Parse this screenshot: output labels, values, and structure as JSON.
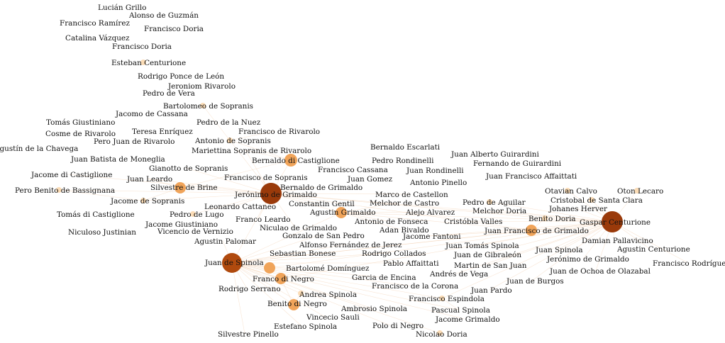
{
  "palette": {
    "hub_large": "#9a3a0a",
    "hub_medium": "#b04a0e",
    "node_mid": "#f0a45a",
    "node_light": "#f7c58e",
    "node_pale": "#fbdcb6",
    "edge": "#f3cfb0",
    "label": "#111111"
  },
  "nodes": [
    {
      "id": "lucian_grillo",
      "label": "Lucián Grillo",
      "tier": "none"
    },
    {
      "id": "alonso_guzman",
      "label": "Alonso de Guzmán",
      "tier": "none"
    },
    {
      "id": "francisco_ramirez",
      "label": "Francisco Ramírez",
      "tier": "none"
    },
    {
      "id": "francisco_doria_1",
      "label": "Francisco Doria",
      "tier": "none"
    },
    {
      "id": "catalina_vazquez",
      "label": "Catalina Vázquez",
      "tier": "none"
    },
    {
      "id": "francisco_doria_2",
      "label": "Francisco Doria",
      "tier": "none"
    },
    {
      "id": "esteban_centurione",
      "label": "Esteban Centurione",
      "tier": "pale"
    },
    {
      "id": "rodrigo_ponce",
      "label": "Rodrigo Ponce de León",
      "tier": "none"
    },
    {
      "id": "jeroniom_rivarolo",
      "label": "Jeroniom Rivarolo",
      "tier": "none"
    },
    {
      "id": "pedro_vera",
      "label": "Pedro de Vera",
      "tier": "none"
    },
    {
      "id": "bartolomeo_sopranis",
      "label": "Bartolomeo de Sopranis",
      "tier": "pale"
    },
    {
      "id": "jacomo_cassana",
      "label": "Jacomo de Cassana",
      "tier": "none"
    },
    {
      "id": "tomas_giustiniano",
      "label": "Tomás Giustiniano",
      "tier": "none"
    },
    {
      "id": "pedro_nuez",
      "label": "Pedro de la Nuez",
      "tier": "none"
    },
    {
      "id": "teresa_enriquez",
      "label": "Teresa Enríquez",
      "tier": "none"
    },
    {
      "id": "cosme_rivarolo",
      "label": "Cosme de Rivarolo",
      "tier": "none"
    },
    {
      "id": "francisco_rivarolo",
      "label": "Francisco de Rivarolo",
      "tier": "none"
    },
    {
      "id": "pero_juan_rivarolo",
      "label": "Pero Juan de Rivarolo",
      "tier": "none"
    },
    {
      "id": "antonio_sopranis",
      "label": "Antonio de Sopranis",
      "tier": "pale"
    },
    {
      "id": "agustin_chavega",
      "label": "Agustín de la Chavega",
      "tier": "none"
    },
    {
      "id": "mariettina_sopranis",
      "label": "Mariettina Sopranis de Rivarolo",
      "tier": "none"
    },
    {
      "id": "juan_batista_moneglia",
      "label": "Juan Batista de Moneglia",
      "tier": "none"
    },
    {
      "id": "bernaldo_castiglione",
      "label": "Bernaldo di Castiglione",
      "tier": "mid_large"
    },
    {
      "id": "bernaldo_escarlati",
      "label": "Bernaldo Escarlati",
      "tier": "none"
    },
    {
      "id": "juan_alberto_guirardini",
      "label": "Juan Alberto Guirardini",
      "tier": "none"
    },
    {
      "id": "pedro_rondinelli",
      "label": "Pedro Rondinelli",
      "tier": "none"
    },
    {
      "id": "fernando_guirardini",
      "label": "Fernando de Guirardini",
      "tier": "none"
    },
    {
      "id": "gianotto_sopranis",
      "label": "Gianotto de Sopranis",
      "tier": "none"
    },
    {
      "id": "francisco_cassana",
      "label": "Francisco Cassana",
      "tier": "none"
    },
    {
      "id": "juan_rondinelli",
      "label": "Juan Rondinelli",
      "tier": "none"
    },
    {
      "id": "jacome_castiglione",
      "label": "Jacome di Castiglione",
      "tier": "none"
    },
    {
      "id": "juan_leardo",
      "label": "Juan Leardo",
      "tier": "none"
    },
    {
      "id": "francisco_sopranis",
      "label": "Francisco de Sopranis",
      "tier": "none"
    },
    {
      "id": "juan_gomez",
      "label": "Juan Gomez",
      "tier": "none"
    },
    {
      "id": "juan_francisco_affaittati",
      "label": "Juan Francisco Affaittati",
      "tier": "none"
    },
    {
      "id": "antonio_pinello",
      "label": "Antonio Pinello",
      "tier": "none"
    },
    {
      "id": "silvestre_brine",
      "label": "Silvestre de Brine",
      "tier": "mid"
    },
    {
      "id": "bernaldo_grimaldo",
      "label": "Bernaldo de Grimaldo",
      "tier": "none"
    },
    {
      "id": "pero_benito_bassignana",
      "label": "Pero Benito de Bassignana",
      "tier": "pale"
    },
    {
      "id": "jeronimo_grimaldo_1",
      "label": "Jerónimo de Grimaldo",
      "tier": "hub"
    },
    {
      "id": "otavian_calvo",
      "label": "Otavian Calvo",
      "tier": "pale"
    },
    {
      "id": "oton_lecaro",
      "label": "Oton Lecaro",
      "tier": "pale"
    },
    {
      "id": "marco_castellon",
      "label": "Marco de Castellon",
      "tier": "none"
    },
    {
      "id": "cristobal_santa_clara",
      "label": "Cristobal de Santa Clara",
      "tier": "pale"
    },
    {
      "id": "jacome_sopranis",
      "label": "Jacome de Sopranis",
      "tier": "pale"
    },
    {
      "id": "constantin_gentil",
      "label": "Constantin Gentil",
      "tier": "none"
    },
    {
      "id": "melchor_castro",
      "label": "Melchor de Castro",
      "tier": "none"
    },
    {
      "id": "pedro_aguilar",
      "label": "Pedro de Aguilar",
      "tier": "pale"
    },
    {
      "id": "johanes_herver",
      "label": "Johanes Herver",
      "tier": "none"
    },
    {
      "id": "leonardo_cattaneo",
      "label": "Leonardo Cattaneo",
      "tier": "none"
    },
    {
      "id": "agustin_grimaldo",
      "label": "Agustin Grimaldo",
      "tier": "mid"
    },
    {
      "id": "alejo_alvarez",
      "label": "Alejo Alvarez",
      "tier": "none"
    },
    {
      "id": "melchor_doria",
      "label": "Melchor Doria",
      "tier": "none"
    },
    {
      "id": "tomas_castiglione",
      "label": "Tomás di Castiglione",
      "tier": "none"
    },
    {
      "id": "pedro_lugo",
      "label": "Pedro de Lugo",
      "tier": "pale"
    },
    {
      "id": "franco_leardo",
      "label": "Franco Leardo",
      "tier": "none"
    },
    {
      "id": "benito_doria_1",
      "label": "Benito Doria",
      "tier": "pale"
    },
    {
      "id": "gaspar_centurione",
      "label": "Gaspar Centurione",
      "tier": "hub"
    },
    {
      "id": "antonio_fonseca",
      "label": "Antonio de Fonseca",
      "tier": "none"
    },
    {
      "id": "cristobal_valles",
      "label": "Cristóbla Valles",
      "tier": "none"
    },
    {
      "id": "jacome_giustiniano",
      "label": "Jacome Giustiniano",
      "tier": "none"
    },
    {
      "id": "niculao_grimaldo",
      "label": "Niculao de Grimaldo",
      "tier": "none"
    },
    {
      "id": "adan_bivaldo",
      "label": "Adan Bivaldo",
      "tier": "none"
    },
    {
      "id": "juan_francisco_grimaldo",
      "label": "Juan Francisco de Grimaldo",
      "tier": "mid"
    },
    {
      "id": "niculoso_justinian",
      "label": "Niculoso Justinian",
      "tier": "none"
    },
    {
      "id": "vicencio_vernizio",
      "label": "Vicencio de Vernizio",
      "tier": "none"
    },
    {
      "id": "gonzalo_san_pedro",
      "label": "Gonzalo de San Pedro",
      "tier": "none"
    },
    {
      "id": "jacome_fantoni",
      "label": "Jacome Fantoni",
      "tier": "none"
    },
    {
      "id": "agustin_palomar",
      "label": "Agustin Palomar",
      "tier": "none"
    },
    {
      "id": "damian_pallavicino",
      "label": "Damian Pallavicino",
      "tier": "none"
    },
    {
      "id": "alfonso_fernandez_jerez",
      "label": "Alfonso Fernández de Jerez",
      "tier": "none"
    },
    {
      "id": "juan_tomas_spinola",
      "label": "Juan Tomás Spinola",
      "tier": "none"
    },
    {
      "id": "agustin_centurione",
      "label": "Agustin Centurione",
      "tier": "none"
    },
    {
      "id": "sebastian_bonese",
      "label": "Sebastian Bonese",
      "tier": "none"
    },
    {
      "id": "rodrigo_collados",
      "label": "Rodrigo Collados",
      "tier": "none"
    },
    {
      "id": "juan_spinola_1",
      "label": "Juan Spinola",
      "tier": "none"
    },
    {
      "id": "juan_gibraleon",
      "label": "Juan de Gibraleón",
      "tier": "none"
    },
    {
      "id": "juan_spinola_hub",
      "label": "Juan de Spinola",
      "tier": "hub_medium"
    },
    {
      "id": "jeronimo_grimaldo_2",
      "label": "Jerónimo de Grimaldo",
      "tier": "none"
    },
    {
      "id": "francisco_rodriguez",
      "label": "Francisco Rodríguez",
      "tier": "none"
    },
    {
      "id": "pablo_affaittati",
      "label": "Pablo Affaittati",
      "tier": "none"
    },
    {
      "id": "martin_san_juan",
      "label": "Martin de San Juan",
      "tier": "none"
    },
    {
      "id": "bartolome_dominguez",
      "label": "Bartolomé Domínguez",
      "tier": "mid"
    },
    {
      "id": "juan_ochoa_olazabal",
      "label": "Juan de Ochoa de Olazabal",
      "tier": "none"
    },
    {
      "id": "andres_vega",
      "label": "Andrés de Vega",
      "tier": "none"
    },
    {
      "id": "franco_negro",
      "label": "Franco di Negro",
      "tier": "mid"
    },
    {
      "id": "garcia_encina",
      "label": "Garcia de Encina",
      "tier": "none"
    },
    {
      "id": "juan_burgos",
      "label": "Juan de Burgos",
      "tier": "none"
    },
    {
      "id": "rodrigo_serrano",
      "label": "Rodrigo Serrano",
      "tier": "none"
    },
    {
      "id": "francisco_corona",
      "label": "Francisco de la Corona",
      "tier": "none"
    },
    {
      "id": "juan_pardo",
      "label": "Juan Pardo",
      "tier": "none"
    },
    {
      "id": "andrea_spinola",
      "label": "Andrea Spinola",
      "tier": "pale"
    },
    {
      "id": "francisco_espindola",
      "label": "Francisco Espindola",
      "tier": "pale"
    },
    {
      "id": "benito_negro",
      "label": "Benito di Negro",
      "tier": "mid"
    },
    {
      "id": "ambrosio_spinola",
      "label": "Ambrosio Spinola",
      "tier": "none"
    },
    {
      "id": "pascual_spinola",
      "label": "Pascual Spinola",
      "tier": "none"
    },
    {
      "id": "vincecio_sauli",
      "label": "Vincecio Sauli",
      "tier": "none"
    },
    {
      "id": "jacome_grimaldo",
      "label": "Jacome Grimaldo",
      "tier": "none"
    },
    {
      "id": "estefano_spinola",
      "label": "Estefano Spinola",
      "tier": "none"
    },
    {
      "id": "polo_negro",
      "label": "Polo di Negro",
      "tier": "none"
    },
    {
      "id": "silvestre_pinello",
      "label": "Silvestre Pinello",
      "tier": "none"
    },
    {
      "id": "nicolao_doria",
      "label": "Nicolao Doria",
      "tier": "pale"
    }
  ],
  "edges": [
    [
      "jeronimo_grimaldo_1",
      "bernaldo_castiglione"
    ],
    [
      "jeronimo_grimaldo_1",
      "silvestre_brine"
    ],
    [
      "jeronimo_grimaldo_1",
      "agustin_grimaldo"
    ],
    [
      "jeronimo_grimaldo_1",
      "juan_spinola_hub"
    ],
    [
      "jeronimo_grimaldo_1",
      "gaspar_centurione"
    ],
    [
      "jeronimo_grimaldo_1",
      "antonio_sopranis"
    ],
    [
      "jeronimo_grimaldo_1",
      "francisco_sopranis"
    ],
    [
      "jeronimo_grimaldo_1",
      "juan_leardo"
    ],
    [
      "jeronimo_grimaldo_1",
      "jacome_sopranis"
    ],
    [
      "jeronimo_grimaldo_1",
      "pedro_lugo"
    ],
    [
      "jeronimo_grimaldo_1",
      "gianotto_sopranis"
    ],
    [
      "jeronimo_grimaldo_1",
      "leonardo_cattaneo"
    ],
    [
      "jeronimo_grimaldo_1",
      "franco_leardo"
    ],
    [
      "jeronimo_grimaldo_1",
      "niculao_grimaldo"
    ],
    [
      "jeronimo_grimaldo_1",
      "bernaldo_grimaldo"
    ],
    [
      "jeronimo_grimaldo_1",
      "juan_francisco_grimaldo"
    ],
    [
      "jeronimo_grimaldo_1",
      "benito_doria_1"
    ],
    [
      "jeronimo_grimaldo_1",
      "marco_castellon"
    ],
    [
      "jeronimo_grimaldo_1",
      "constantin_gentil"
    ],
    [
      "jeronimo_grimaldo_1",
      "pero_benito_bassignana"
    ],
    [
      "jeronimo_grimaldo_1",
      "jacome_castiglione"
    ],
    [
      "jeronimo_grimaldo_1",
      "mariettina_sopranis"
    ],
    [
      "gaspar_centurione",
      "juan_francisco_grimaldo"
    ],
    [
      "gaspar_centurione",
      "benito_doria_1"
    ],
    [
      "gaspar_centurione",
      "agustin_grimaldo"
    ],
    [
      "gaspar_centurione",
      "juan_spinola_hub"
    ],
    [
      "gaspar_centurione",
      "cristobal_santa_clara"
    ],
    [
      "gaspar_centurione",
      "otavian_calvo"
    ],
    [
      "gaspar_centurione",
      "oton_lecaro"
    ],
    [
      "gaspar_centurione",
      "johanes_herver"
    ],
    [
      "gaspar_centurione",
      "damian_pallavicino"
    ],
    [
      "gaspar_centurione",
      "juan_spinola_1"
    ],
    [
      "gaspar_centurione",
      "agustin_centurione"
    ],
    [
      "gaspar_centurione",
      "jeronimo_grimaldo_2"
    ],
    [
      "gaspar_centurione",
      "francisco_rodriguez"
    ],
    [
      "gaspar_centurione",
      "juan_ochoa_olazabal"
    ],
    [
      "gaspar_centurione",
      "juan_burgos"
    ],
    [
      "gaspar_centurione",
      "martin_san_juan"
    ],
    [
      "gaspar_centurione",
      "juan_gibraleon"
    ],
    [
      "gaspar_centurione",
      "juan_tomas_spinola"
    ],
    [
      "gaspar_centurione",
      "cristobal_valles"
    ],
    [
      "gaspar_centurione",
      "pedro_aguilar"
    ],
    [
      "gaspar_centurione",
      "melchor_doria"
    ],
    [
      "gaspar_centurione",
      "jacome_fantoni"
    ],
    [
      "gaspar_centurione",
      "andres_vega"
    ],
    [
      "gaspar_centurione",
      "juan_pardo"
    ],
    [
      "gaspar_centurione",
      "francisco_espindola"
    ],
    [
      "gaspar_centurione",
      "franco_negro"
    ],
    [
      "gaspar_centurione",
      "bartolome_dominguez"
    ],
    [
      "juan_spinola_hub",
      "franco_negro"
    ],
    [
      "juan_spinola_hub",
      "bartolome_dominguez"
    ],
    [
      "juan_spinola_hub",
      "benito_negro"
    ],
    [
      "juan_spinola_hub",
      "andrea_spinola"
    ],
    [
      "juan_spinola_hub",
      "rodrigo_serrano"
    ],
    [
      "juan_spinola_hub",
      "sebastian_bonese"
    ],
    [
      "juan_spinola_hub",
      "alfonso_fernandez_jerez"
    ],
    [
      "juan_spinola_hub",
      "rodrigo_collados"
    ],
    [
      "juan_spinola_hub",
      "pablo_affaittati"
    ],
    [
      "juan_spinola_hub",
      "garcia_encina"
    ],
    [
      "juan_spinola_hub",
      "francisco_corona"
    ],
    [
      "juan_spinola_hub",
      "ambrosio_spinola"
    ],
    [
      "juan_spinola_hub",
      "vincecio_sauli"
    ],
    [
      "juan_spinola_hub",
      "estefano_spinola"
    ],
    [
      "juan_spinola_hub",
      "polo_negro"
    ],
    [
      "juan_spinola_hub",
      "silvestre_pinello"
    ],
    [
      "juan_spinola_hub",
      "pascual_spinola"
    ],
    [
      "juan_spinola_hub",
      "jacome_grimaldo"
    ],
    [
      "juan_spinola_hub",
      "nicolao_doria"
    ],
    [
      "juan_spinola_hub",
      "francisco_espindola"
    ],
    [
      "juan_spinola_hub",
      "agustin_grimaldo"
    ],
    [
      "juan_spinola_hub",
      "gonzalo_san_pedro"
    ],
    [
      "juan_spinola_hub",
      "agustin_palomar"
    ],
    [
      "juan_spinola_hub",
      "juan_francisco_grimaldo"
    ],
    [
      "agustin_grimaldo",
      "juan_francisco_grimaldo"
    ],
    [
      "agustin_grimaldo",
      "antonio_fonseca"
    ],
    [
      "agustin_grimaldo",
      "alejo_alvarez"
    ],
    [
      "agustin_grimaldo",
      "adan_bivaldo"
    ],
    [
      "agustin_grimaldo",
      "melchor_castro"
    ],
    [
      "bernaldo_castiglione",
      "antonio_sopranis"
    ],
    [
      "bernaldo_castiglione",
      "mariettina_sopranis"
    ],
    [
      "bernaldo_castiglione",
      "silvestre_brine"
    ],
    [
      "antonio_sopranis",
      "bartolomeo_sopranis"
    ],
    [
      "antonio_sopranis",
      "francisco_rivarolo"
    ],
    [
      "silvestre_brine",
      "juan_leardo"
    ],
    [
      "silvestre_brine",
      "jacome_sopranis"
    ],
    [
      "jacome_sopranis",
      "pero_benito_bassignana"
    ],
    [
      "juan_francisco_grimaldo",
      "benito_doria_1"
    ],
    [
      "juan_francisco_grimaldo",
      "jacome_fantoni"
    ],
    [
      "benito_negro",
      "franco_negro"
    ],
    [
      "benito_negro",
      "andrea_spinola"
    ],
    [
      "francisco_espindola",
      "pascual_spinola"
    ]
  ],
  "labels": {}
}
